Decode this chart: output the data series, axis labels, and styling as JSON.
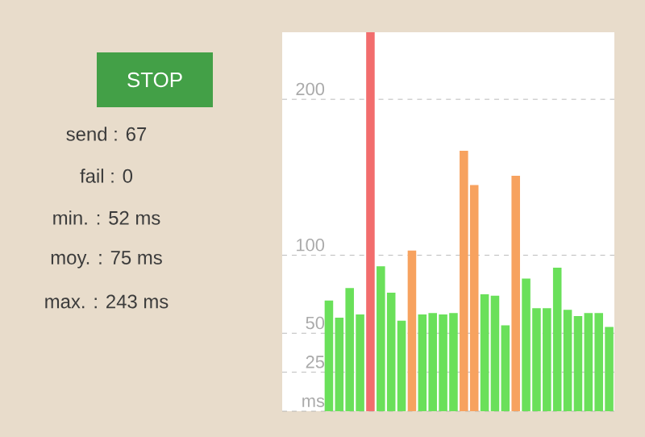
{
  "chart_data": [
    {
      "type": "other",
      "annotations": [
        "STOP",
        "send : 67",
        "fail : 0",
        "min. : 52 ms",
        "moy. : 75 ms",
        "max. : 243 ms"
      ]
    },
    {
      "type": "bar",
      "categories": [
        null,
        null,
        null,
        null,
        null,
        null,
        null,
        null,
        null,
        null,
        null,
        null,
        null,
        null,
        null,
        null,
        null,
        null,
        null,
        null,
        null,
        null,
        null,
        null,
        null,
        null,
        null,
        null,
        null,
        null,
        null,
        null
      ],
      "values": [
        null,
        null,
        null,
        null,
        71,
        60,
        79,
        62,
        243,
        93,
        76,
        58,
        103,
        62,
        63,
        62,
        63,
        167,
        145,
        75,
        74,
        55,
        151,
        85,
        66,
        66,
        92,
        65,
        61,
        63,
        63,
        54
      ],
      "colors": [
        "#6ae05a",
        "#6ae05a",
        "#6ae05a",
        "#6ae05a",
        "#6ae05a",
        "#6ae05a",
        "#6ae05a",
        "#6ae05a",
        "#f26d6d",
        "#6ae05a",
        "#6ae05a",
        "#6ae05a",
        "#f7a25f",
        "#6ae05a",
        "#6ae05a",
        "#6ae05a",
        "#6ae05a",
        "#f7a25f",
        "#f7a25f",
        "#6ae05a",
        "#6ae05a",
        "#6ae05a",
        "#f7a25f",
        "#6ae05a",
        "#6ae05a",
        "#6ae05a",
        "#6ae05a",
        "#6ae05a",
        "#6ae05a",
        "#6ae05a",
        "#6ae05a",
        "#6ae05a"
      ],
      "ylim": [
        0,
        243
      ],
      "yticks": [
        {
          "value": 0,
          "label": "ms"
        },
        25,
        50,
        100,
        200
      ],
      "grid": "y",
      "tick_labels": "y"
    }
  ]
}
